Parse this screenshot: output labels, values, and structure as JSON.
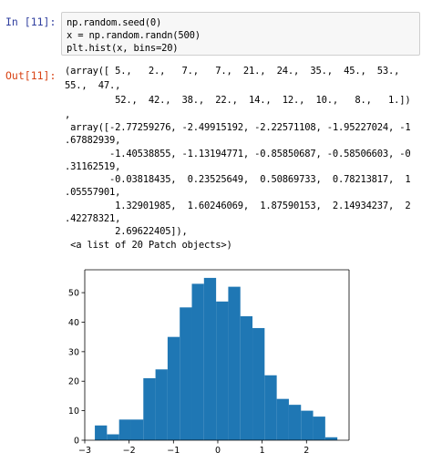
{
  "cell_in": {
    "prompt": "In [11]:",
    "code_lines": [
      "np.random.seed(0)",
      "x = np.random.randn(500)",
      "plt.hist(x, bins=20)"
    ]
  },
  "cell_out": {
    "prompt": "Out[11]:",
    "text_lines": [
      "(array([ 5.,   2.,   7.,   7.,  21.,  24.,  35.,  45.,  53.,",
      "55.,  47.,",
      "         52.,  42.,  38.,  22.,  14.,  12.,  10.,   8.,   1.])",
      ",",
      " array([-2.77259276, -2.49915192, -2.22571108, -1.95227024, -1",
      ".67882939,",
      "        -1.40538855, -1.13194771, -0.85850687, -0.58506603, -0",
      ".31162519,",
      "        -0.03818435,  0.23525649,  0.50869733,  0.78213817,  1",
      ".05557901,",
      "         1.32901985,  1.60246069,  1.87590153,  2.14934237,  2",
      ".42278321,",
      "         2.69622405]),",
      " <a list of 20 Patch objects>)"
    ]
  },
  "chart_data": {
    "type": "bar",
    "bin_edges": [
      -2.77259276,
      -2.49915192,
      -2.22571108,
      -1.95227024,
      -1.67882939,
      -1.40538855,
      -1.13194771,
      -0.85850687,
      -0.58506603,
      -0.31162519,
      -0.03818435,
      0.23525649,
      0.50869733,
      0.78213817,
      1.05557901,
      1.32901985,
      1.60246069,
      1.87590153,
      2.14934237,
      2.42278321,
      2.69622405
    ],
    "values": [
      5,
      2,
      7,
      7,
      21,
      24,
      35,
      45,
      53,
      55,
      47,
      52,
      42,
      38,
      22,
      14,
      12,
      10,
      8,
      1
    ],
    "xlim": [
      -3.0,
      2.96
    ],
    "ylim": [
      0,
      57.75
    ],
    "x_ticks": [
      -3,
      -2,
      -1,
      0,
      1,
      2
    ],
    "y_ticks": [
      0,
      10,
      20,
      30,
      40,
      50
    ],
    "bar_color": "#1f77b4",
    "title": "",
    "xlabel": "",
    "ylabel": "",
    "grid": false
  }
}
